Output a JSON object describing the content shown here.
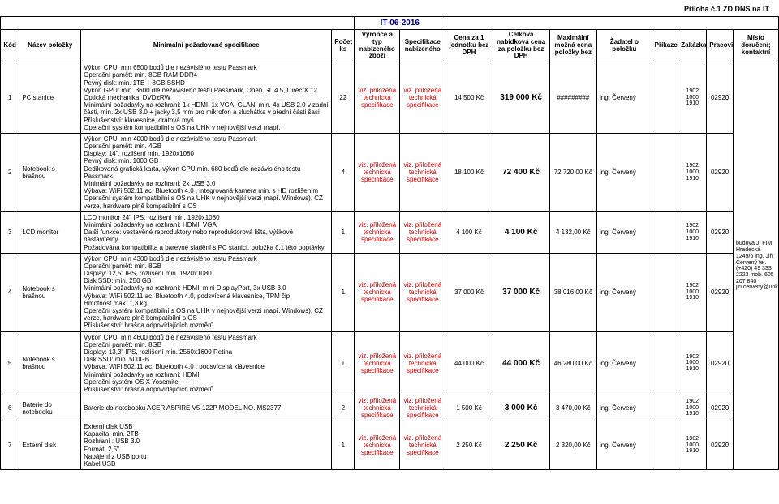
{
  "attachment": "Příloha č.1 ZD DNS na IT",
  "docId": "IT-06-2016",
  "headers": {
    "kod": "Kód",
    "nazev": "Název položky",
    "spec": "Minimální požadované specifikace",
    "pocet": "Počet ks",
    "vyrobce": "Výrobce a typ nabízeného zboží",
    "specifikace": "Specifikace nabízeného",
    "cena1": "Cena za 1 jednotku bez DPH",
    "cenaCelk": "Celková nabídková cena za položku bez DPH",
    "max": "Maximální možná cena položky bez",
    "zadatel": "Žadatel o položku",
    "prikazce": "Příkazce",
    "zakazka": "Zakázka",
    "pracoviste": "Pracoviště",
    "misto": "Místo doručení; kontaktní"
  },
  "rows": [
    {
      "kod": "1",
      "nazev": "PC stanice",
      "spec": "Výkon CPU: min 6500 bodů dle nezávislého testu Passmark\nOperační paměť: min. 8GB RAM DDR4\nPevný disk: min. 1TB + 8GB SSHD\nVýkon GPU: min. 3600 dle nezávislého testu Passmark, Open GL 4.5, DirectX 12\nOptická mechanika: DVD±RW\nMinimální požadavky na rozhraní: 1x HDMI, 1x VGA, GLAN, min. 4x USB 2.0 v zadní části, min. 2x USB 3.0 + jacky 3,5 mm pro mikrofon a sluchátka v přední části šasi\nPříslušenství: klávesnice, drátová myš\nOperační systém kompatibilní s OS na UHK v nejnovější verzi (např.",
      "pocet": "22",
      "vyrobce": "viz. přiložená technická specifikace",
      "specifikace": "viz. přiložená technická specifikace",
      "cena1": "14 500 Kč",
      "cenaCelk": "319 000 Kč",
      "max": "#########",
      "zadatel": "ing. Červený",
      "zakazka": "1902 1000 1910",
      "pracoviste": "02920",
      "misto": ""
    },
    {
      "kod": "2",
      "nazev": "Notebook s brašnou",
      "spec": "Výkon CPU: min 4000 bodů dle nezávislého testu Passmark\nOperační paměť: min. 4GB\nDisplay: 14\", rozlišení min. 1920x1080\nPevný disk: min. 1000 GB\nDedikovaná grafická karta, výkon GPU min. 680 bodů dle nezávislého testu Passmark\nMinimální požadavky na rozhraní: 2x USB 3.0\nVýbava: WiFi 502.11 ac, Bluetooth 4.0 , integrovaná kamera min. s HD rozlišením\nOperační systém kompatibilní s OS na UHK v nejnovější verzi (např. Windows), CZ verze, hardware plně kompatibilní s OS",
      "pocet": "4",
      "vyrobce": "viz. přiložená technická specifikace",
      "specifikace": "viz. přiložená technická specifikace",
      "cena1": "18 100 Kč",
      "cenaCelk": "72 400 Kč",
      "max": "72 720,00 Kč",
      "zadatel": "ing. Červený",
      "zakazka": "1902 1000 1910",
      "pracoviste": "02920",
      "misto": ""
    },
    {
      "kod": "3",
      "nazev": "LCD monitor",
      "spec": "LCD monitor 24\" IPS, rozlišení min. 1920x1080\nMinimální požadavky na rozhraní: HDMI, VGA\nDalší funkce: vestavěné reproduktory nebo reproduktorová lišta, výškově nastavitelný\nPožadována kompatibilita a barevné sladění s PC stanicí, položka č.1 této poptávky",
      "pocet": "1",
      "vyrobce": "viz. přiložená technická specifikace",
      "specifikace": "viz. přiložená technická specifikace",
      "cena1": "4 100 Kč",
      "cenaCelk": "4 100 Kč",
      "max": "4 132,00 Kč",
      "zadatel": "ing. Červený",
      "zakazka": "1902 1000 1910",
      "pracoviste": "02920",
      "misto": ""
    },
    {
      "kod": "4",
      "nazev": "Notebook s brašnou",
      "spec": "Výkon CPU: min 4300 bodů dle nezávislého testu Passmark\nOperační paměť: min. 8GB\nDisplay: 12,5\" IPS, rozlišení min. 1920x1080\nDisk SSD: min. 250 GB\nMinimální požadavky na rozhraní: HDMI, mini DisplayPort, 3x USB 3.0\nVýbava: WiFi 502.11 ac, Bluetooth 4.0, podsvícená klávesnice, TPM čip\nHmotnost max. 1,3 kg\nOperační systém kompatibilní s OS na UHK v nejnovější verzi (např. Windows), CZ verze, hardware plně kompatibilní s OS\nPříslušenství: brašna odpovídajících rozměrů",
      "pocet": "1",
      "vyrobce": "viz. přiložená technická specifikace",
      "specifikace": "viz. přiložená technická specifikace",
      "cena1": "37 000 Kč",
      "cenaCelk": "37 000 Kč",
      "max": "38 016,00 Kč",
      "zadatel": "ing. Červený",
      "zakazka": "1902 1000 1910",
      "pracoviste": "02920",
      "misto": "budova J. FIM Hradecká 1249/6 ing. Jiří Červený tel. (+420) 49 333 2223 mob. 605 207 840 jiri.cerveny@uhk.cz"
    },
    {
      "kod": "5",
      "nazev": "Notebook s brašnou",
      "spec": "Výkon CPU: min 4600 bodů dle nezávislého testu Passmark\nOperační paměť: min. 8GB\nDisplay: 13,3\" IPS, rozlišení min. 2560x1600 Retina\nDisk SSD: min. 500GB\nVýbava: WiFi 502.11 ac, Bluetooth 4.0 , podsvícená klávesnice\nMinimální požadavky na rozhraní: HDMI\nOperační systém OS X Yosemite\nPříslušenství: brašna odpovídajících rozměrů",
      "pocet": "1",
      "vyrobce": "viz. přiložená technická specifikace",
      "specifikace": "viz. přiložená technická specifikace",
      "cena1": "44 000 Kč",
      "cenaCelk": "44 000 Kč",
      "max": "46 280,00 Kč",
      "zadatel": "ing. Červený",
      "zakazka": "1902 1000 1910",
      "pracoviste": "02920",
      "misto": ""
    },
    {
      "kod": "6",
      "nazev": "Baterie do notebooku",
      "spec": "Baterie do notebooku ACER ASPIRE V5-122P MODEL NO. MS2377",
      "pocet": "2",
      "vyrobce": "viz. přiložená technická specifikace",
      "specifikace": "viz. přiložená technická specifikace",
      "cena1": "1 500 Kč",
      "cenaCelk": "3 000 Kč",
      "max": "3 470,00 Kč",
      "zadatel": "ing. Červený",
      "zakazka": "1902 1000 1910",
      "pracoviste": "02920",
      "misto": ""
    },
    {
      "kod": "7",
      "nazev": "Externí disk",
      "spec": "Externí disk USB\nKapacita: min. 2TB\nRozhraní : USB 3.0\nFormát: 2,5\"\nNapájení z USB portu\nKabel USB",
      "pocet": "1",
      "vyrobce": "viz. přiložená technická specifikace",
      "specifikace": "viz. přiložená technická specifikace",
      "cena1": "2 250 Kč",
      "cenaCelk": "2 250 Kč",
      "max": "2 320,00 Kč",
      "zadatel": "ing. Červený",
      "zakazka": "1902 1000 1910",
      "pracoviste": "02920",
      "misto": ""
    }
  ]
}
